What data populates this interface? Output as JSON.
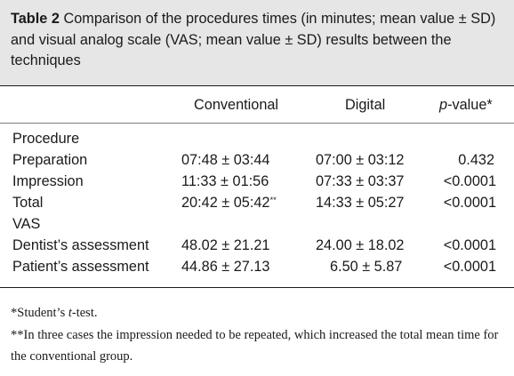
{
  "caption": {
    "label": "Table 2",
    "text": "Comparison of the procedures times (in minutes; mean value ± SD) and visual analog scale (VAS; mean value ± SD) results between the techniques"
  },
  "table": {
    "headers": {
      "conventional": "Conventional",
      "digital": "Digital",
      "pvalue_p": "p",
      "pvalue_rest": "-value*"
    },
    "rows": [
      {
        "label": "Procedure",
        "conventional": "",
        "conventional_mark": "",
        "digital": "",
        "pvalue": ""
      },
      {
        "label": "Preparation",
        "conventional": "07:48 ± 03:44",
        "conventional_mark": "",
        "digital": "07:00 ± 03:12",
        "pvalue": "0.432"
      },
      {
        "label": "Impression",
        "conventional": "11:33 ± 01:56",
        "conventional_mark": "",
        "digital": "07:33 ± 03:37",
        "pvalue": "<0.0001"
      },
      {
        "label": "Total",
        "conventional": "20:42 ± 05:42",
        "conventional_mark": "**",
        "digital": "14:33 ± 05:27",
        "pvalue": "<0.0001"
      },
      {
        "label": "VAS",
        "conventional": "",
        "conventional_mark": "",
        "digital": "",
        "pvalue": ""
      },
      {
        "label": "Dentist’s assessment",
        "conventional": "48.02 ± 21.21",
        "conventional_mark": "",
        "digital": "24.00 ± 18.02",
        "pvalue": "<0.0001"
      },
      {
        "label": "Patient’s assessment",
        "conventional": "44.86 ± 27.13",
        "conventional_mark": "",
        "digital": "6.50 ± 5.87",
        "pvalue": "<0.0001"
      }
    ]
  },
  "footnotes": {
    "note1_prefix": "*Student’s ",
    "note1_italic": "t",
    "note1_suffix": "-test.",
    "note2": "**In three cases the impression needed to be repeated, which increased the total mean time for the conventional group."
  }
}
